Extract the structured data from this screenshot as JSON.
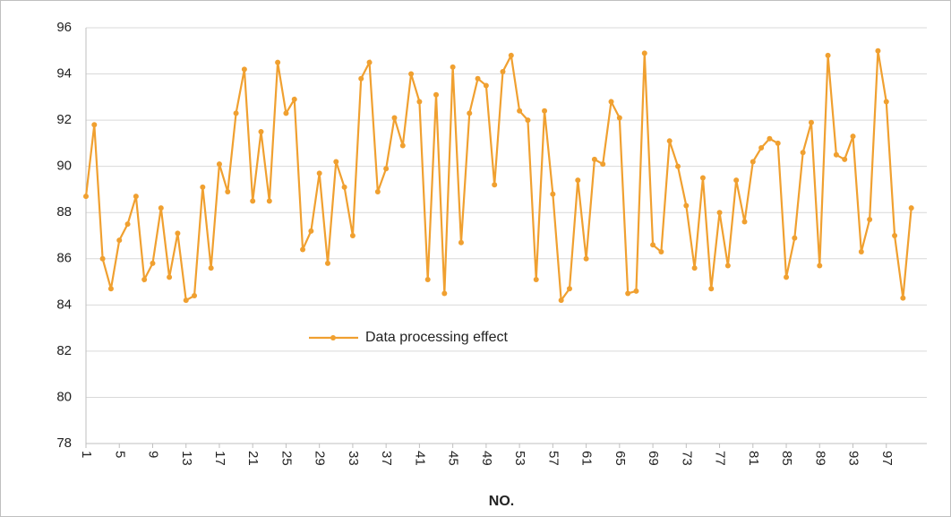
{
  "chart_data": {
    "type": "line",
    "x_label": "NO.",
    "categories": [
      "1",
      null,
      null,
      null,
      "5",
      null,
      null,
      null,
      "9",
      null,
      null,
      null,
      "13",
      null,
      null,
      null,
      "17",
      null,
      null,
      null,
      "21",
      null,
      null,
      null,
      "25",
      null,
      null,
      null,
      "29",
      null,
      null,
      null,
      "33",
      null,
      null,
      null,
      "37",
      null,
      null,
      null,
      "41",
      null,
      null,
      null,
      "45",
      null,
      null,
      null,
      "49",
      null,
      null,
      null,
      "53",
      null,
      null,
      null,
      "57",
      null,
      null,
      null,
      "61",
      null,
      null,
      null,
      "65",
      null,
      null,
      null,
      "69",
      null,
      null,
      null,
      "73",
      null,
      null,
      null,
      "77",
      null,
      null,
      null,
      "81",
      null,
      null,
      null,
      "85",
      null,
      null,
      null,
      "89",
      null,
      null,
      null,
      "93",
      null,
      null,
      null,
      "97",
      null,
      null,
      null
    ],
    "series": [
      {
        "name": "Data processing effect",
        "color": "#f0a030",
        "values": [
          88.7,
          91.8,
          86.0,
          84.7,
          86.8,
          87.5,
          88.7,
          85.1,
          85.8,
          88.2,
          85.2,
          87.1,
          84.2,
          84.4,
          89.1,
          85.6,
          90.1,
          88.9,
          92.3,
          94.2,
          88.5,
          91.5,
          88.5,
          94.5,
          92.3,
          92.9,
          86.4,
          87.2,
          89.7,
          85.8,
          90.2,
          89.1,
          87.0,
          93.8,
          94.5,
          88.9,
          89.9,
          92.1,
          90.9,
          94.0,
          92.8,
          85.1,
          93.1,
          84.5,
          94.3,
          86.7,
          92.3,
          93.8,
          93.5,
          89.2,
          94.1,
          94.8,
          92.4,
          92.0,
          85.1,
          92.4,
          88.8,
          84.2,
          84.7,
          89.4,
          86.0,
          90.3,
          90.1,
          92.8,
          92.1,
          84.5,
          84.6,
          94.9,
          86.6,
          86.3,
          91.1,
          90.0,
          88.3,
          85.6,
          89.5,
          84.7,
          88.0,
          85.7,
          89.4,
          87.6,
          90.2,
          90.8,
          91.2,
          91.0,
          85.2,
          86.9,
          90.6,
          91.9,
          85.7,
          94.8,
          90.5,
          90.3,
          91.3,
          86.3,
          87.7,
          95.0,
          92.8,
          87.0,
          84.3,
          88.2
        ]
      }
    ],
    "ylim": [
      78,
      96
    ],
    "yticks": [
      78,
      80,
      82,
      84,
      86,
      88,
      90,
      92,
      94,
      96
    ],
    "grid": true
  }
}
